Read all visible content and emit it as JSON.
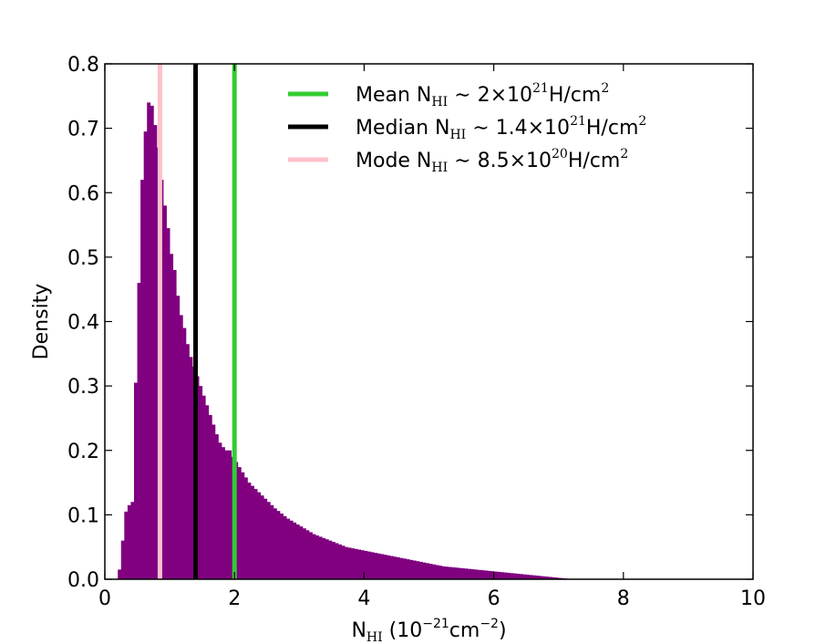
{
  "chart_data": {
    "type": "bar",
    "title": "",
    "xlabel": "N_HI (10^-21 cm^-2)",
    "xlabel_parts": {
      "base": "N",
      "sub": "HI",
      "paren_open": " (10",
      "exp": "−21",
      "unit": "cm",
      "unit_exp": "−2",
      "paren_close": ")"
    },
    "ylabel": "Density",
    "xlim": [
      0,
      10
    ],
    "ylim": [
      0,
      0.8
    ],
    "xticks": [
      0,
      2,
      4,
      6,
      8,
      10
    ],
    "yticks": [
      0.0,
      0.1,
      0.2,
      0.3,
      0.4,
      0.5,
      0.6,
      0.7,
      0.8
    ],
    "xtick_labels": [
      "0",
      "2",
      "4",
      "6",
      "8",
      "10"
    ],
    "ytick_labels": [
      "0.0",
      "0.1",
      "0.2",
      "0.3",
      "0.4",
      "0.5",
      "0.6",
      "0.7",
      "0.8"
    ],
    "grid": false,
    "legend_position": "upper-right",
    "histogram": {
      "color": "#800080",
      "bin_width": 0.05,
      "bin_start": 0.2,
      "values": [
        0.015,
        0.06,
        0.105,
        0.115,
        0.12,
        0.305,
        0.46,
        0.62,
        0.695,
        0.74,
        0.735,
        0.705,
        0.67,
        0.62,
        0.58,
        0.545,
        0.505,
        0.48,
        0.44,
        0.41,
        0.39,
        0.365,
        0.345,
        0.33,
        0.315,
        0.3,
        0.285,
        0.27,
        0.255,
        0.24,
        0.225,
        0.212,
        0.205,
        0.2,
        0.2,
        0.19,
        0.182,
        0.174,
        0.166,
        0.158,
        0.15,
        0.145,
        0.14,
        0.135,
        0.13,
        0.125,
        0.12,
        0.115,
        0.11,
        0.106,
        0.102,
        0.098,
        0.094,
        0.091,
        0.088,
        0.085,
        0.082,
        0.079,
        0.076,
        0.073,
        0.07,
        0.068,
        0.066,
        0.064,
        0.062,
        0.06,
        0.058,
        0.056,
        0.054,
        0.052,
        0.05,
        0.049,
        0.048,
        0.047,
        0.046,
        0.045,
        0.044,
        0.043,
        0.042,
        0.041,
        0.04,
        0.039,
        0.038,
        0.037,
        0.036,
        0.035,
        0.034,
        0.033,
        0.032,
        0.031,
        0.03,
        0.029,
        0.028,
        0.027,
        0.026,
        0.025,
        0.024,
        0.023,
        0.022,
        0.021,
        0.02,
        0.0195,
        0.019,
        0.0185,
        0.018,
        0.0175,
        0.017,
        0.0165,
        0.016,
        0.0155,
        0.015,
        0.0145,
        0.014,
        0.0135,
        0.013,
        0.0125,
        0.012,
        0.0115,
        0.011,
        0.0105,
        0.01,
        0.0095,
        0.009,
        0.0085,
        0.008,
        0.0075,
        0.007,
        0.0065,
        0.006,
        0.0055,
        0.005,
        0.0045,
        0.004,
        0.0035,
        0.003,
        0.0025,
        0.002,
        0.0015,
        0.001,
        0.0005
      ]
    },
    "vlines": [
      {
        "label": "Mean N_HI ~ 2×10^21 H/cm^2",
        "x": 2.0,
        "color": "#33cc33",
        "parts": {
          "pre": "Mean N",
          "sub": "HI",
          "sim": " ∼ ",
          "val": "2×10",
          "exp": "21",
          "unit": "H/cm",
          "unit_exp": "2"
        }
      },
      {
        "label": "Median N_HI ~ 1.4×10^21 H/cm^2",
        "x": 1.4,
        "color": "#000000",
        "parts": {
          "pre": "Median N",
          "sub": "HI",
          "sim": " ∼ ",
          "val": "1.4×10",
          "exp": "21",
          "unit": "H/cm",
          "unit_exp": "2"
        }
      },
      {
        "label": "Mode N_HI ~ 8.5×10^20 H/cm^2",
        "x": 0.85,
        "color": "#ffc0cb",
        "parts": {
          "pre": "Mode N",
          "sub": "HI",
          "sim": " ∼ ",
          "val": "8.5×10",
          "exp": "20",
          "unit": "H/cm",
          "unit_exp": "2"
        }
      }
    ]
  }
}
